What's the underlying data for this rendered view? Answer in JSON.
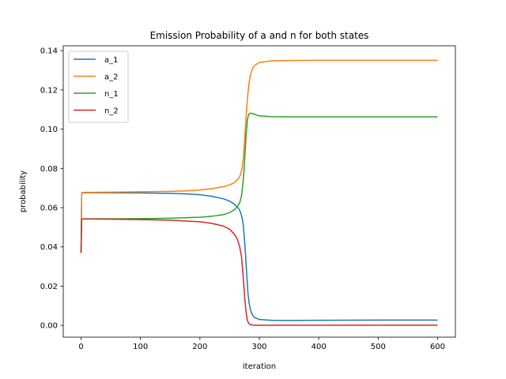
{
  "chart_data": {
    "type": "line",
    "title": "Emission Probability of a and n for both states",
    "xlabel": "iteration",
    "ylabel": "probability",
    "xlim": [
      -30,
      630
    ],
    "ylim": [
      -0.006,
      0.1425
    ],
    "xticks": [
      0,
      100,
      200,
      300,
      400,
      500,
      600
    ],
    "yticks": [
      0.0,
      0.02,
      0.04,
      0.06,
      0.08,
      0.1,
      0.12,
      0.14
    ],
    "ytick_labels": [
      "0.00",
      "0.02",
      "0.04",
      "0.06",
      "0.08",
      "0.10",
      "0.12",
      "0.14"
    ],
    "grid": false,
    "legend_position": "upper left",
    "series": [
      {
        "name": "a_1",
        "color": "#1f77b4",
        "x": [
          0,
          1,
          2,
          20,
          50,
          100,
          150,
          180,
          200,
          220,
          240,
          250,
          258,
          264,
          268,
          271,
          273,
          275,
          277,
          279,
          281,
          283,
          285,
          288,
          292,
          300,
          320,
          350,
          400,
          500,
          600
        ],
        "y": [
          0.037,
          0.067,
          0.0676,
          0.0676,
          0.0676,
          0.0675,
          0.0673,
          0.067,
          0.0666,
          0.0658,
          0.0645,
          0.0633,
          0.0618,
          0.06,
          0.058,
          0.055,
          0.051,
          0.044,
          0.035,
          0.025,
          0.016,
          0.011,
          0.008,
          0.0055,
          0.004,
          0.003,
          0.0026,
          0.0025,
          0.0026,
          0.0027,
          0.0027
        ]
      },
      {
        "name": "a_2",
        "color": "#ff7f0e",
        "x": [
          0,
          1,
          2,
          20,
          50,
          100,
          150,
          180,
          200,
          220,
          240,
          250,
          258,
          264,
          268,
          271,
          273,
          275,
          277,
          279,
          281,
          283,
          285,
          288,
          292,
          300,
          320,
          350,
          400,
          500,
          600
        ],
        "y": [
          0.037,
          0.067,
          0.0678,
          0.0678,
          0.0679,
          0.0681,
          0.0683,
          0.0686,
          0.069,
          0.0697,
          0.0707,
          0.0716,
          0.0728,
          0.0745,
          0.0765,
          0.08,
          0.085,
          0.093,
          0.103,
          0.112,
          0.119,
          0.124,
          0.1275,
          0.1305,
          0.1325,
          0.134,
          0.1348,
          0.135,
          0.1351,
          0.1351,
          0.1351
        ]
      },
      {
        "name": "n_1",
        "color": "#2ca02c",
        "x": [
          0,
          1,
          2,
          20,
          50,
          100,
          150,
          200,
          220,
          240,
          250,
          258,
          263,
          267,
          270,
          272,
          274,
          276,
          278,
          280,
          282,
          285,
          290,
          295,
          300,
          320,
          350,
          400,
          500,
          600
        ],
        "y": [
          0.037,
          0.054,
          0.0543,
          0.0543,
          0.0543,
          0.0544,
          0.0546,
          0.0551,
          0.0556,
          0.0565,
          0.0575,
          0.059,
          0.0605,
          0.0625,
          0.066,
          0.071,
          0.078,
          0.088,
          0.098,
          0.105,
          0.1075,
          0.1082,
          0.1078,
          0.1072,
          0.1068,
          0.1064,
          0.1063,
          0.1063,
          0.1063,
          0.1063
        ]
      },
      {
        "name": "n_2",
        "color": "#d62728",
        "x": [
          0,
          1,
          2,
          20,
          50,
          100,
          150,
          200,
          220,
          240,
          250,
          258,
          263,
          267,
          270,
          272,
          274,
          276,
          278,
          280,
          282,
          285,
          288,
          292,
          300,
          350,
          400,
          500,
          600
        ],
        "y": [
          0.037,
          0.054,
          0.0542,
          0.0542,
          0.0541,
          0.0539,
          0.0536,
          0.0528,
          0.052,
          0.0506,
          0.049,
          0.0465,
          0.044,
          0.04,
          0.035,
          0.028,
          0.02,
          0.012,
          0.006,
          0.0025,
          0.001,
          0.0004,
          0.0002,
          0.0001,
          0.0001,
          0.0001,
          0.0001,
          0.0001,
          0.0001
        ]
      }
    ]
  }
}
